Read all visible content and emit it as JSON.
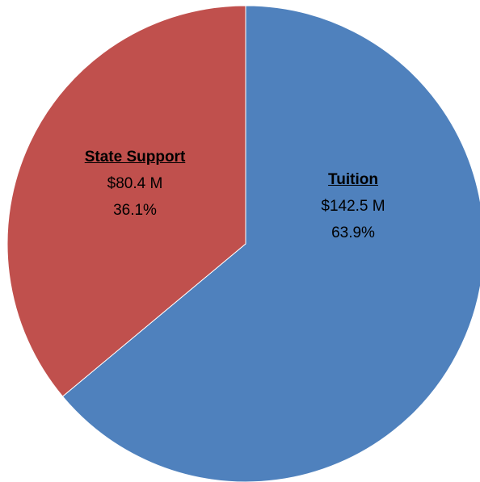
{
  "chart_data": {
    "type": "pie",
    "categories": [
      "Tuition",
      "State Support"
    ],
    "values": [
      142.5,
      80.4
    ],
    "value_labels": [
      "$142.5 M",
      "$80.4 M"
    ],
    "percentages": [
      63.9,
      36.1
    ],
    "percentage_labels": [
      "63.9%",
      "36.1%"
    ],
    "colors": [
      "#4f81bd",
      "#c0504d"
    ]
  }
}
